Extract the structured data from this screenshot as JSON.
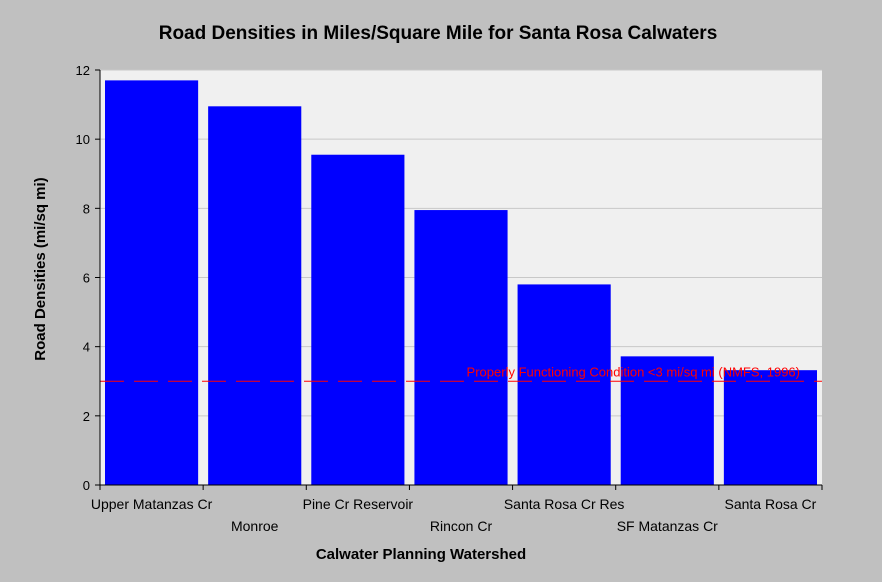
{
  "chart_data": {
    "type": "bar",
    "title": "Road Densities in Miles/Square Mile for Santa Rosa Calwaters",
    "xlabel": "Calwater Planning Watershed",
    "ylabel": "Road Densities (mi/sq mi)",
    "ylim": [
      0,
      12
    ],
    "yticks": [
      "0",
      "2",
      "4",
      "6",
      "8",
      "10",
      "12"
    ],
    "grid": true,
    "categories": [
      "Upper Matanzas Cr",
      "Monroe",
      "Pine Cr Reservoir",
      "Rincon Cr",
      "Santa Rosa Cr Res",
      "SF Matanzas Cr",
      "Santa Rosa Cr"
    ],
    "values": [
      11.7,
      10.95,
      9.55,
      7.95,
      5.8,
      3.72,
      3.32
    ],
    "reference_line": {
      "value": 3,
      "label": "Properly Functioning Condition <3 mi/sq mi (NMFS, 1996)",
      "color": "#ff0000"
    },
    "colors": {
      "bar": "#0000ff",
      "background": "#c0c0c0",
      "plot_area": "#f0f0f0",
      "grid": "#c8c8c8"
    }
  }
}
